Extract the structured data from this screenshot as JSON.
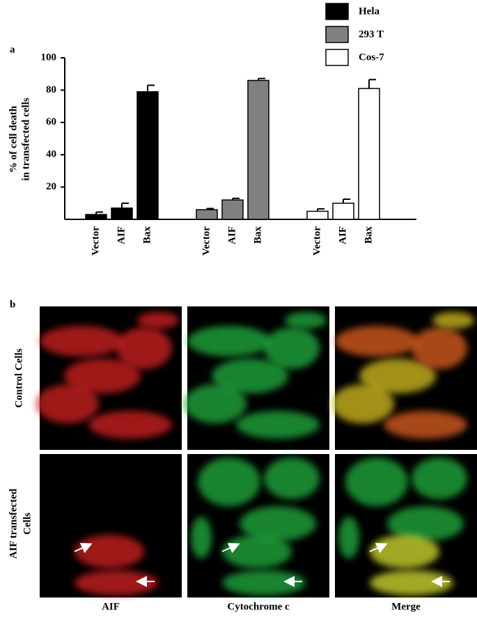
{
  "chart_data": {
    "type": "bar",
    "panel_label": "a",
    "y_label": [
      "% of cell death",
      "in transfected cells"
    ],
    "categories": [
      "Vector",
      "AIF",
      "Bax"
    ],
    "series": [
      {
        "name": "Hela",
        "color": "#000000",
        "values": [
          3,
          7,
          79
        ],
        "errors": [
          1.5,
          3,
          4
        ]
      },
      {
        "name": "293 T",
        "color": "#808080",
        "values": [
          6,
          12,
          86
        ],
        "errors": [
          0.7,
          1,
          1.2
        ]
      },
      {
        "name": "Cos-7",
        "color": "#ffffff",
        "values": [
          5,
          10,
          81
        ],
        "errors": [
          1.5,
          2.5,
          5.5
        ]
      }
    ],
    "ylim": [
      0,
      100
    ],
    "yticks": [
      20,
      40,
      60,
      80,
      100
    ],
    "grid": false,
    "legend": "upper right"
  },
  "figure_b": {
    "panel_label": "b",
    "rows": [
      "Control Cells",
      [
        "AIF transfected",
        "Cells"
      ]
    ],
    "columns": [
      "AIF",
      "Cytochrome c",
      "Merge"
    ]
  }
}
